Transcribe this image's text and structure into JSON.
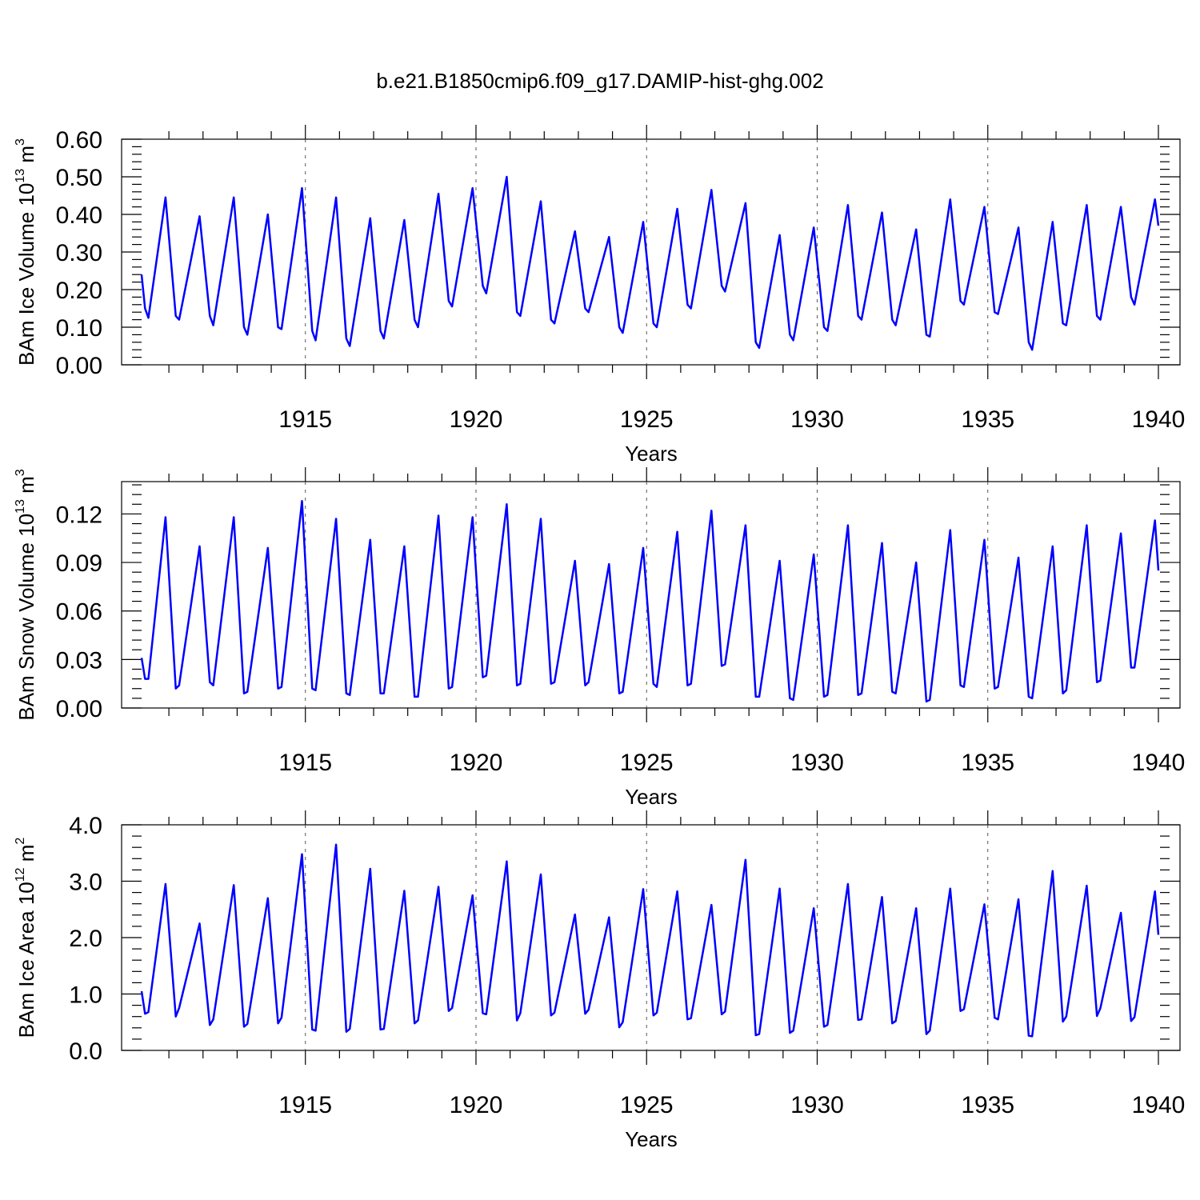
{
  "page": {
    "title": "b.e21.B1850cmip6.f09_g17.DAMIP-hist-ghg.002"
  },
  "chart_data": [
    {
      "type": "line",
      "ylabel": "BAm Ice Volume",
      "ylabel_unit": "10^13 m^3",
      "ylabel_unit_base": "10",
      "ylabel_unit_exp": "13",
      "ylabel_unit_m": "m",
      "ylabel_unit_m_exp": "3",
      "xlabel": "Years",
      "xlim": [
        1910.2,
        1940
      ],
      "ylim": [
        0,
        0.6
      ],
      "y_ticks": [
        "0.00",
        "0.10",
        "0.20",
        "0.30",
        "0.40",
        "0.50",
        "0.60"
      ],
      "y_tick_values": [
        0,
        0.1,
        0.2,
        0.3,
        0.4,
        0.5,
        0.6
      ],
      "x_ticks": [
        "1915",
        "1920",
        "1925",
        "1930",
        "1935",
        "1940"
      ],
      "x_tick_values": [
        1915,
        1920,
        1925,
        1930,
        1935,
        1940
      ],
      "grid_years": [
        1915,
        1920,
        1925,
        1930,
        1935
      ],
      "series": [
        {
          "name": "BAm Ice Volume",
          "color": "#0000ff",
          "x": [
            1910.2,
            1910.3,
            1910.4,
            1910.9,
            1911.2,
            1911.3,
            1911.9,
            1912.2,
            1912.3,
            1912.9,
            1913.2,
            1913.3,
            1913.9,
            1914.2,
            1914.3,
            1914.9,
            1915.2,
            1915.3,
            1915.9,
            1916.2,
            1916.3,
            1916.9,
            1917.2,
            1917.3,
            1917.9,
            1918.2,
            1918.3,
            1918.9,
            1919.2,
            1919.3,
            1919.9,
            1920.2,
            1920.3,
            1920.9,
            1921.2,
            1921.3,
            1921.9,
            1922.2,
            1922.3,
            1922.9,
            1923.2,
            1923.3,
            1923.9,
            1924.2,
            1924.3,
            1924.9,
            1925.2,
            1925.3,
            1925.9,
            1926.2,
            1926.3,
            1926.9,
            1927.2,
            1927.3,
            1927.9,
            1928.2,
            1928.3,
            1928.9,
            1929.2,
            1929.3,
            1929.9,
            1930.2,
            1930.3,
            1930.9,
            1931.2,
            1931.3,
            1931.9,
            1932.2,
            1932.3,
            1932.9,
            1933.2,
            1933.3,
            1933.9,
            1934.2,
            1934.3,
            1934.9,
            1935.2,
            1935.3,
            1935.9,
            1936.2,
            1936.3,
            1936.9,
            1937.2,
            1937.3,
            1937.9,
            1938.2,
            1938.3,
            1938.9,
            1939.2,
            1939.3,
            1939.9,
            1940.0
          ],
          "values": [
            0.24,
            0.15,
            0.125,
            0.445,
            0.13,
            0.12,
            0.395,
            0.13,
            0.105,
            0.445,
            0.1,
            0.08,
            0.4,
            0.1,
            0.095,
            0.47,
            0.09,
            0.065,
            0.445,
            0.07,
            0.05,
            0.39,
            0.09,
            0.07,
            0.385,
            0.12,
            0.1,
            0.455,
            0.17,
            0.155,
            0.47,
            0.21,
            0.19,
            0.5,
            0.14,
            0.13,
            0.435,
            0.12,
            0.11,
            0.355,
            0.15,
            0.14,
            0.34,
            0.1,
            0.085,
            0.38,
            0.11,
            0.1,
            0.415,
            0.16,
            0.15,
            0.465,
            0.21,
            0.195,
            0.43,
            0.06,
            0.045,
            0.345,
            0.08,
            0.065,
            0.365,
            0.1,
            0.09,
            0.425,
            0.13,
            0.12,
            0.405,
            0.12,
            0.105,
            0.36,
            0.08,
            0.075,
            0.44,
            0.17,
            0.16,
            0.42,
            0.14,
            0.135,
            0.365,
            0.06,
            0.04,
            0.38,
            0.11,
            0.105,
            0.425,
            0.13,
            0.12,
            0.42,
            0.18,
            0.16,
            0.44,
            0.37
          ]
        }
      ]
    },
    {
      "type": "line",
      "ylabel": "BAm Snow Volume",
      "ylabel_unit": "10^13 m^3",
      "ylabel_unit_base": "10",
      "ylabel_unit_exp": "13",
      "ylabel_unit_m": "m",
      "ylabel_unit_m_exp": "3",
      "xlabel": "Years",
      "xlim": [
        1910.2,
        1940
      ],
      "ylim": [
        0,
        0.14
      ],
      "y_ticks": [
        "0.00",
        "0.03",
        "0.06",
        "0.09",
        "0.12"
      ],
      "y_tick_values": [
        0,
        0.03,
        0.06,
        0.09,
        0.12
      ],
      "x_ticks": [
        "1915",
        "1920",
        "1925",
        "1930",
        "1935",
        "1940"
      ],
      "x_tick_values": [
        1915,
        1920,
        1925,
        1930,
        1935,
        1940
      ],
      "grid_years": [
        1915,
        1920,
        1925,
        1930,
        1935
      ],
      "series": [
        {
          "name": "BAm Snow Volume",
          "color": "#0000ff",
          "x": [
            1910.2,
            1910.3,
            1910.4,
            1910.9,
            1911.2,
            1911.3,
            1911.9,
            1912.2,
            1912.3,
            1912.9,
            1913.2,
            1913.3,
            1913.9,
            1914.2,
            1914.3,
            1914.9,
            1915.2,
            1915.3,
            1915.9,
            1916.2,
            1916.3,
            1916.9,
            1917.2,
            1917.3,
            1917.9,
            1918.2,
            1918.3,
            1918.9,
            1919.2,
            1919.3,
            1919.9,
            1920.2,
            1920.3,
            1920.9,
            1921.2,
            1921.3,
            1921.9,
            1922.2,
            1922.3,
            1922.9,
            1923.2,
            1923.3,
            1923.9,
            1924.2,
            1924.3,
            1924.9,
            1925.2,
            1925.3,
            1925.9,
            1926.2,
            1926.3,
            1926.9,
            1927.2,
            1927.3,
            1927.9,
            1928.2,
            1928.3,
            1928.9,
            1929.2,
            1929.3,
            1929.9,
            1930.2,
            1930.3,
            1930.9,
            1931.2,
            1931.3,
            1931.9,
            1932.2,
            1932.3,
            1932.9,
            1933.2,
            1933.3,
            1933.9,
            1934.2,
            1934.3,
            1934.9,
            1935.2,
            1935.3,
            1935.9,
            1936.2,
            1936.3,
            1936.9,
            1937.2,
            1937.3,
            1937.9,
            1938.2,
            1938.3,
            1938.9,
            1939.2,
            1939.3,
            1939.9,
            1940.0
          ],
          "values": [
            0.031,
            0.018,
            0.018,
            0.118,
            0.012,
            0.014,
            0.1,
            0.016,
            0.014,
            0.118,
            0.009,
            0.01,
            0.099,
            0.012,
            0.013,
            0.128,
            0.012,
            0.011,
            0.117,
            0.009,
            0.008,
            0.104,
            0.009,
            0.009,
            0.1,
            0.007,
            0.007,
            0.119,
            0.012,
            0.013,
            0.118,
            0.019,
            0.02,
            0.126,
            0.014,
            0.015,
            0.117,
            0.015,
            0.016,
            0.091,
            0.014,
            0.016,
            0.089,
            0.009,
            0.01,
            0.099,
            0.015,
            0.013,
            0.109,
            0.014,
            0.015,
            0.122,
            0.026,
            0.027,
            0.113,
            0.007,
            0.007,
            0.091,
            0.006,
            0.005,
            0.095,
            0.007,
            0.008,
            0.113,
            0.008,
            0.009,
            0.102,
            0.01,
            0.009,
            0.09,
            0.004,
            0.005,
            0.11,
            0.014,
            0.013,
            0.104,
            0.012,
            0.013,
            0.093,
            0.007,
            0.006,
            0.1,
            0.009,
            0.011,
            0.113,
            0.016,
            0.017,
            0.108,
            0.025,
            0.025,
            0.116,
            0.085
          ]
        }
      ]
    },
    {
      "type": "line",
      "ylabel": "BAm Ice Area",
      "ylabel_unit": "10^12 m^2",
      "ylabel_unit_base": "10",
      "ylabel_unit_exp": "12",
      "ylabel_unit_m": "m",
      "ylabel_unit_m_exp": "2",
      "xlabel": "Years",
      "xlim": [
        1910.2,
        1940
      ],
      "ylim": [
        0,
        4.0
      ],
      "y_ticks": [
        "0.0",
        "1.0",
        "2.0",
        "3.0",
        "4.0"
      ],
      "y_tick_values": [
        0,
        1.0,
        2.0,
        3.0,
        4.0
      ],
      "x_ticks": [
        "1915",
        "1920",
        "1925",
        "1930",
        "1935",
        "1940"
      ],
      "x_tick_values": [
        1915,
        1920,
        1925,
        1930,
        1935,
        1940
      ],
      "grid_years": [
        1915,
        1920,
        1925,
        1930,
        1935
      ],
      "series": [
        {
          "name": "BAm Ice Area",
          "color": "#0000ff",
          "x": [
            1910.2,
            1910.3,
            1910.4,
            1910.9,
            1911.2,
            1911.3,
            1911.9,
            1912.2,
            1912.3,
            1912.9,
            1913.2,
            1913.3,
            1913.9,
            1914.2,
            1914.3,
            1914.9,
            1915.2,
            1915.3,
            1915.9,
            1916.2,
            1916.3,
            1916.9,
            1917.2,
            1917.3,
            1917.9,
            1918.2,
            1918.3,
            1918.9,
            1919.2,
            1919.3,
            1919.9,
            1920.2,
            1920.3,
            1920.9,
            1921.2,
            1921.3,
            1921.9,
            1922.2,
            1922.3,
            1922.9,
            1923.2,
            1923.3,
            1923.9,
            1924.2,
            1924.3,
            1924.9,
            1925.2,
            1925.3,
            1925.9,
            1926.2,
            1926.3,
            1926.9,
            1927.2,
            1927.3,
            1927.9,
            1928.2,
            1928.3,
            1928.9,
            1929.2,
            1929.3,
            1929.9,
            1930.2,
            1930.3,
            1930.9,
            1931.2,
            1931.3,
            1931.9,
            1932.2,
            1932.3,
            1932.9,
            1933.2,
            1933.3,
            1933.9,
            1934.2,
            1934.3,
            1934.9,
            1935.2,
            1935.3,
            1935.9,
            1936.2,
            1936.3,
            1936.9,
            1937.2,
            1937.3,
            1937.9,
            1938.2,
            1938.3,
            1938.9,
            1939.2,
            1939.3,
            1939.9,
            1940.0
          ],
          "values": [
            1.05,
            0.65,
            0.68,
            2.95,
            0.6,
            0.75,
            2.25,
            0.45,
            0.55,
            2.93,
            0.42,
            0.47,
            2.7,
            0.48,
            0.58,
            3.48,
            0.37,
            0.35,
            3.65,
            0.33,
            0.38,
            3.22,
            0.37,
            0.38,
            2.83,
            0.48,
            0.53,
            2.9,
            0.7,
            0.75,
            2.75,
            0.66,
            0.64,
            3.35,
            0.53,
            0.66,
            3.12,
            0.62,
            0.67,
            2.41,
            0.65,
            0.72,
            2.36,
            0.41,
            0.5,
            2.86,
            0.62,
            0.67,
            2.82,
            0.55,
            0.57,
            2.58,
            0.64,
            0.69,
            3.38,
            0.27,
            0.29,
            2.87,
            0.31,
            0.35,
            2.52,
            0.42,
            0.45,
            2.95,
            0.54,
            0.55,
            2.72,
            0.48,
            0.52,
            2.52,
            0.29,
            0.35,
            2.87,
            0.7,
            0.73,
            2.59,
            0.58,
            0.55,
            2.68,
            0.26,
            0.25,
            3.18,
            0.51,
            0.6,
            2.92,
            0.61,
            0.75,
            2.44,
            0.52,
            0.59,
            2.82,
            2.05
          ]
        }
      ]
    }
  ]
}
